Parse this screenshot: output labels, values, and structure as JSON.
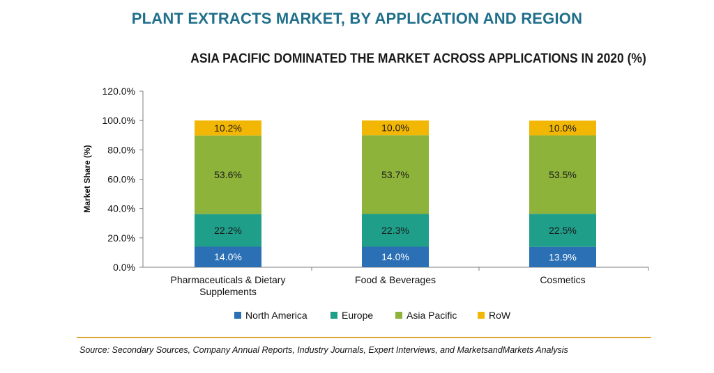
{
  "header": {
    "title": "PLANT EXTRACTS MARKET, BY APPLICATION AND REGION"
  },
  "chart_data": {
    "type": "bar",
    "stacked": true,
    "title": "ASIA PACIFIC DOMINATED THE MARKET ACROSS APPLICATIONS IN 2020 (%)",
    "xlabel": "",
    "ylabel": "Market Share (%)",
    "ylim": [
      0,
      120
    ],
    "yticks": [
      "0.0%",
      "20.0%",
      "40.0%",
      "60.0%",
      "80.0%",
      "100.0%",
      "120.0%"
    ],
    "grid": false,
    "legend_position": "bottom",
    "categories": [
      [
        "Pharmaceuticals & Dietary",
        "Supplements"
      ],
      [
        "Food & Beverages"
      ],
      [
        "Cosmetics"
      ]
    ],
    "series": [
      {
        "name": "North America",
        "color": "#2b6fb5",
        "values": [
          14.0,
          14.0,
          13.9
        ],
        "labels": [
          "14.0%",
          "14.0%",
          "13.9%"
        ],
        "label_color": "#ffffff"
      },
      {
        "name": "Europe",
        "color": "#1f9e8a",
        "values": [
          22.2,
          22.3,
          22.5
        ],
        "labels": [
          "22.2%",
          "22.3%",
          "22.5%"
        ],
        "label_color": "#1a1a1a"
      },
      {
        "name": "Asia Pacific",
        "color": "#8db33a",
        "values": [
          53.6,
          53.7,
          53.5
        ],
        "labels": [
          "53.6%",
          "53.7%",
          "53.5%"
        ],
        "label_color": "#1a1a1a"
      },
      {
        "name": "RoW",
        "color": "#f2b705",
        "values": [
          10.2,
          10.0,
          10.0
        ],
        "labels": [
          "10.2%",
          "10.0%",
          "10.0%"
        ],
        "label_color": "#1a1a1a"
      }
    ]
  },
  "footer": {
    "source": "Source: Secondary Sources, Company Annual Reports, Industry Journals, Expert Interviews, and MarketsandMarkets Analysis"
  }
}
